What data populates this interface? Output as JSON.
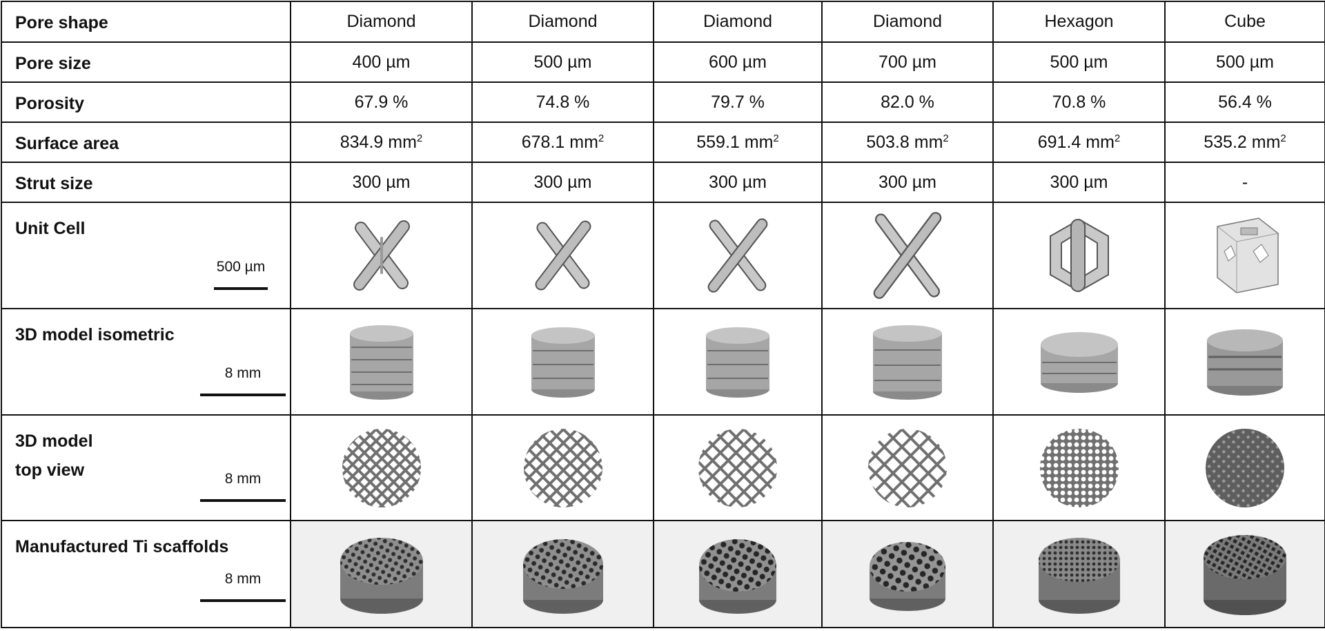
{
  "rows": {
    "pore_shape": "Pore shape",
    "pore_size": "Pore size",
    "porosity": "Porosity",
    "surface_area": "Surface area",
    "strut_size": "Strut size",
    "unit_cell": "Unit Cell",
    "iso": "3D model isometric",
    "top_line1": "3D model",
    "top_line2": "top view",
    "manufactured": "Manufactured Ti scaffolds"
  },
  "scale_labels": {
    "unit_cell": "500  µm",
    "iso": "8 mm",
    "top": "8 mm",
    "manufactured": "8 mm"
  },
  "surface_unit": "mm",
  "surface_exponent": "2",
  "columns": [
    {
      "shape": "Diamond",
      "pore_size": "400 µm",
      "porosity": "67.9 %",
      "surface_area": "834.9",
      "strut_size": "300 µm"
    },
    {
      "shape": "Diamond",
      "pore_size": "500 µm",
      "porosity": "74.8 %",
      "surface_area": "678.1",
      "strut_size": "300 µm"
    },
    {
      "shape": "Diamond",
      "pore_size": "600 µm",
      "porosity": "79.7 %",
      "surface_area": "559.1",
      "strut_size": "300 µm"
    },
    {
      "shape": "Diamond",
      "pore_size": "700 µm",
      "porosity": "82.0 %",
      "surface_area": "503.8",
      "strut_size": "300 µm"
    },
    {
      "shape": "Hexagon",
      "pore_size": "500 µm",
      "porosity": "70.8 %",
      "surface_area": "691.4",
      "strut_size": "300 µm"
    },
    {
      "shape": "Cube",
      "pore_size": "500 µm",
      "porosity": "56.4 %",
      "surface_area": "535.2",
      "strut_size": "-"
    }
  ]
}
